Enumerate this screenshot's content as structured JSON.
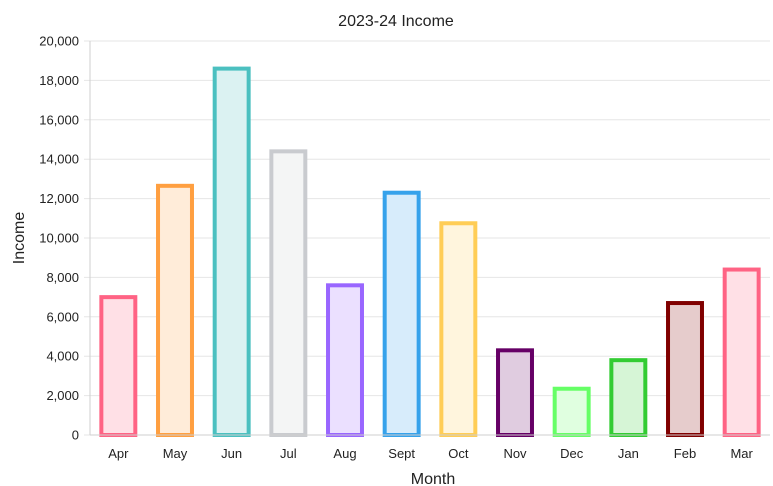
{
  "chart_data": {
    "type": "bar",
    "title": "2023-24 Income",
    "xlabel": "Month",
    "ylabel": "Income",
    "ylim": [
      0,
      20000
    ],
    "yticks": [
      "0",
      "2,000",
      "4,000",
      "6,000",
      "8,000",
      "10,000",
      "12,000",
      "14,000",
      "16,000",
      "18,000",
      "20,000"
    ],
    "grid": true,
    "categories": [
      "Apr",
      "May",
      "Jun",
      "Jul",
      "Aug",
      "Sept",
      "Oct",
      "Nov",
      "Dec",
      "Jan",
      "Feb",
      "Mar"
    ],
    "values": [
      7100,
      12750,
      18700,
      14500,
      7700,
      12400,
      10850,
      4400,
      2450,
      3900,
      6800,
      8500
    ],
    "colors": [
      {
        "border": "#ff6384",
        "fill": "#ffe0e6"
      },
      {
        "border": "#ff9f40",
        "fill": "#ffecd9"
      },
      {
        "border": "#4bc0c0",
        "fill": "#dbf2f2"
      },
      {
        "border": "#c9cbcf",
        "fill": "#f4f5f5"
      },
      {
        "border": "#9966ff",
        "fill": "#ebe0ff"
      },
      {
        "border": "#36a2eb",
        "fill": "#d7ecfb"
      },
      {
        "border": "#ffcd56",
        "fill": "#fff5dd"
      },
      {
        "border": "#660066",
        "fill": "#e0cce0"
      },
      {
        "border": "#66ff66",
        "fill": "#e0ffe0"
      },
      {
        "border": "#33cc33",
        "fill": "#d6f5d6"
      },
      {
        "border": "#800000",
        "fill": "#e6cccc"
      },
      {
        "border": "#ff6384",
        "fill": "#ffe0e6"
      }
    ]
  }
}
